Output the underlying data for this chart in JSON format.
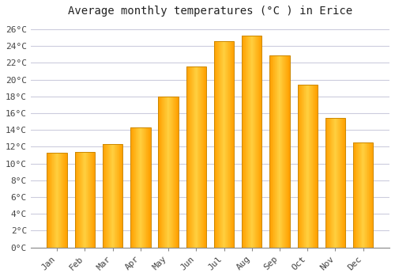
{
  "title": "Average monthly temperatures (°C ) in Erice",
  "months": [
    "Jan",
    "Feb",
    "Mar",
    "Apr",
    "May",
    "Jun",
    "Jul",
    "Aug",
    "Sep",
    "Oct",
    "Nov",
    "Dec"
  ],
  "temperatures": [
    11.3,
    11.4,
    12.3,
    14.3,
    18.0,
    21.6,
    24.6,
    25.2,
    22.9,
    19.4,
    15.4,
    12.5
  ],
  "bar_color_center": "#FFD040",
  "bar_color_edge": "#FFA000",
  "bar_outline_color": "#CC8800",
  "ylim": [
    0,
    27
  ],
  "yticks": [
    0,
    2,
    4,
    6,
    8,
    10,
    12,
    14,
    16,
    18,
    20,
    22,
    24,
    26
  ],
  "background_color": "#FFFFFF",
  "grid_color": "#CCCCDD",
  "title_fontsize": 10,
  "tick_fontsize": 8,
  "bar_width": 0.72
}
